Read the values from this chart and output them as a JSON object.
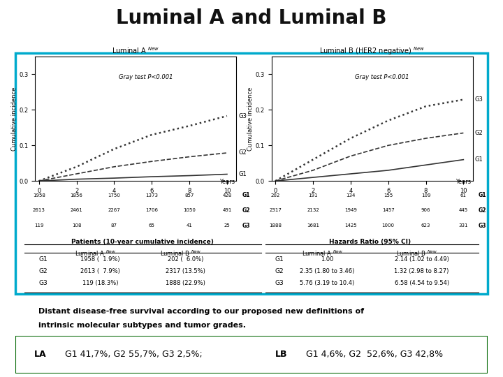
{
  "title": "Luminal A and Luminal B",
  "title_fontsize": 20,
  "title_fontweight": "bold",
  "bg_color": "#ffffff",
  "header_bar_color": "#cc3366",
  "cyan_border_color": "#00aacc",
  "bottom_box_color": "#008800",
  "lumA_title": "Luminal A",
  "lumA_superscript": "New",
  "lumB_title": "Luminal B (HER2 negative)",
  "lumB_superscript": "New",
  "gray_test_text": "Gray test P<0.001",
  "ylabel": "Cumulative incidence",
  "xlabel": "Years",
  "lumA": {
    "G1": {
      "x": [
        0,
        2,
        4,
        6,
        8,
        10
      ],
      "y": [
        0,
        0.005,
        0.008,
        0.012,
        0.015,
        0.019
      ]
    },
    "G2": {
      "x": [
        0,
        2,
        4,
        6,
        8,
        10
      ],
      "y": [
        0,
        0.02,
        0.04,
        0.055,
        0.068,
        0.079
      ]
    },
    "G3": {
      "x": [
        0,
        2,
        4,
        6,
        8,
        10
      ],
      "y": [
        0,
        0.04,
        0.09,
        0.13,
        0.155,
        0.183
      ]
    }
  },
  "lumB": {
    "G1": {
      "x": [
        0,
        2,
        4,
        6,
        8,
        10
      ],
      "y": [
        0,
        0.01,
        0.02,
        0.03,
        0.045,
        0.06
      ]
    },
    "G2": {
      "x": [
        0,
        2,
        4,
        6,
        8,
        10
      ],
      "y": [
        0,
        0.03,
        0.07,
        0.1,
        0.12,
        0.135
      ]
    },
    "G3": {
      "x": [
        0,
        2,
        4,
        6,
        8,
        10
      ],
      "y": [
        0,
        0.06,
        0.12,
        0.17,
        0.21,
        0.229
      ]
    }
  },
  "line_styles": {
    "G1": {
      "ls": "solid",
      "color": "#333333",
      "lw": 1.2
    },
    "G2": {
      "ls": "dashed",
      "color": "#333333",
      "lw": 1.2
    },
    "G3": {
      "ls": "dotted",
      "color": "#333333",
      "lw": 1.8
    }
  },
  "lumA_at_risk": {
    "years": [
      0,
      2,
      4,
      6,
      8,
      10
    ],
    "G1": [
      1958,
      1856,
      1750,
      1373,
      857,
      428
    ],
    "G2": [
      2613,
      2461,
      2267,
      1706,
      1050,
      491
    ],
    "G3": [
      119,
      108,
      87,
      65,
      41,
      25
    ]
  },
  "lumB_at_risk": {
    "years": [
      0,
      2,
      4,
      6,
      8,
      10
    ],
    "G1": [
      202,
      191,
      134,
      155,
      109,
      61
    ],
    "G2": [
      2317,
      2132,
      1949,
      1457,
      906,
      445
    ],
    "G3": [
      1888,
      1681,
      1425,
      1000,
      623,
      331
    ]
  },
  "table_left_header": "Patients (10-year cumulative incidence)",
  "table_right_header": "Hazards Ratio (95% CI)",
  "col_lumA": "Luminal A",
  "col_lumB": "Luminal B",
  "col_new": "New",
  "table_left": {
    "G1": [
      "1958 (  1.9%)",
      "202 (  6.0%)"
    ],
    "G2": [
      "2613 (  7.9%)",
      "2317 (13.5%)"
    ],
    "G3": [
      "119 (18.3%)",
      "1888 (22.9%)"
    ]
  },
  "table_right": {
    "G1": [
      "1.00",
      "2.14 (1.02 to 4.49)"
    ],
    "G2": [
      "2.35 (1.80 to 3.46)",
      "1.32 (2.98 to 8.27)"
    ],
    "G3": [
      "5.76 (3.19 to 10.4)",
      "6.58 (4.54 to 9.54)"
    ]
  },
  "caption_line1": "Distant disease-free survival according to our proposed new definitions of",
  "caption_line2": "intrinsic molecular subtypes and tumor grades.",
  "bottom_text_LA": "LA  G1 41,7%, G2 55,7%, G3 2,5%;",
  "bottom_text_LB": "LB  G1 4,6%, G2  52,6%, G3 42,8%"
}
